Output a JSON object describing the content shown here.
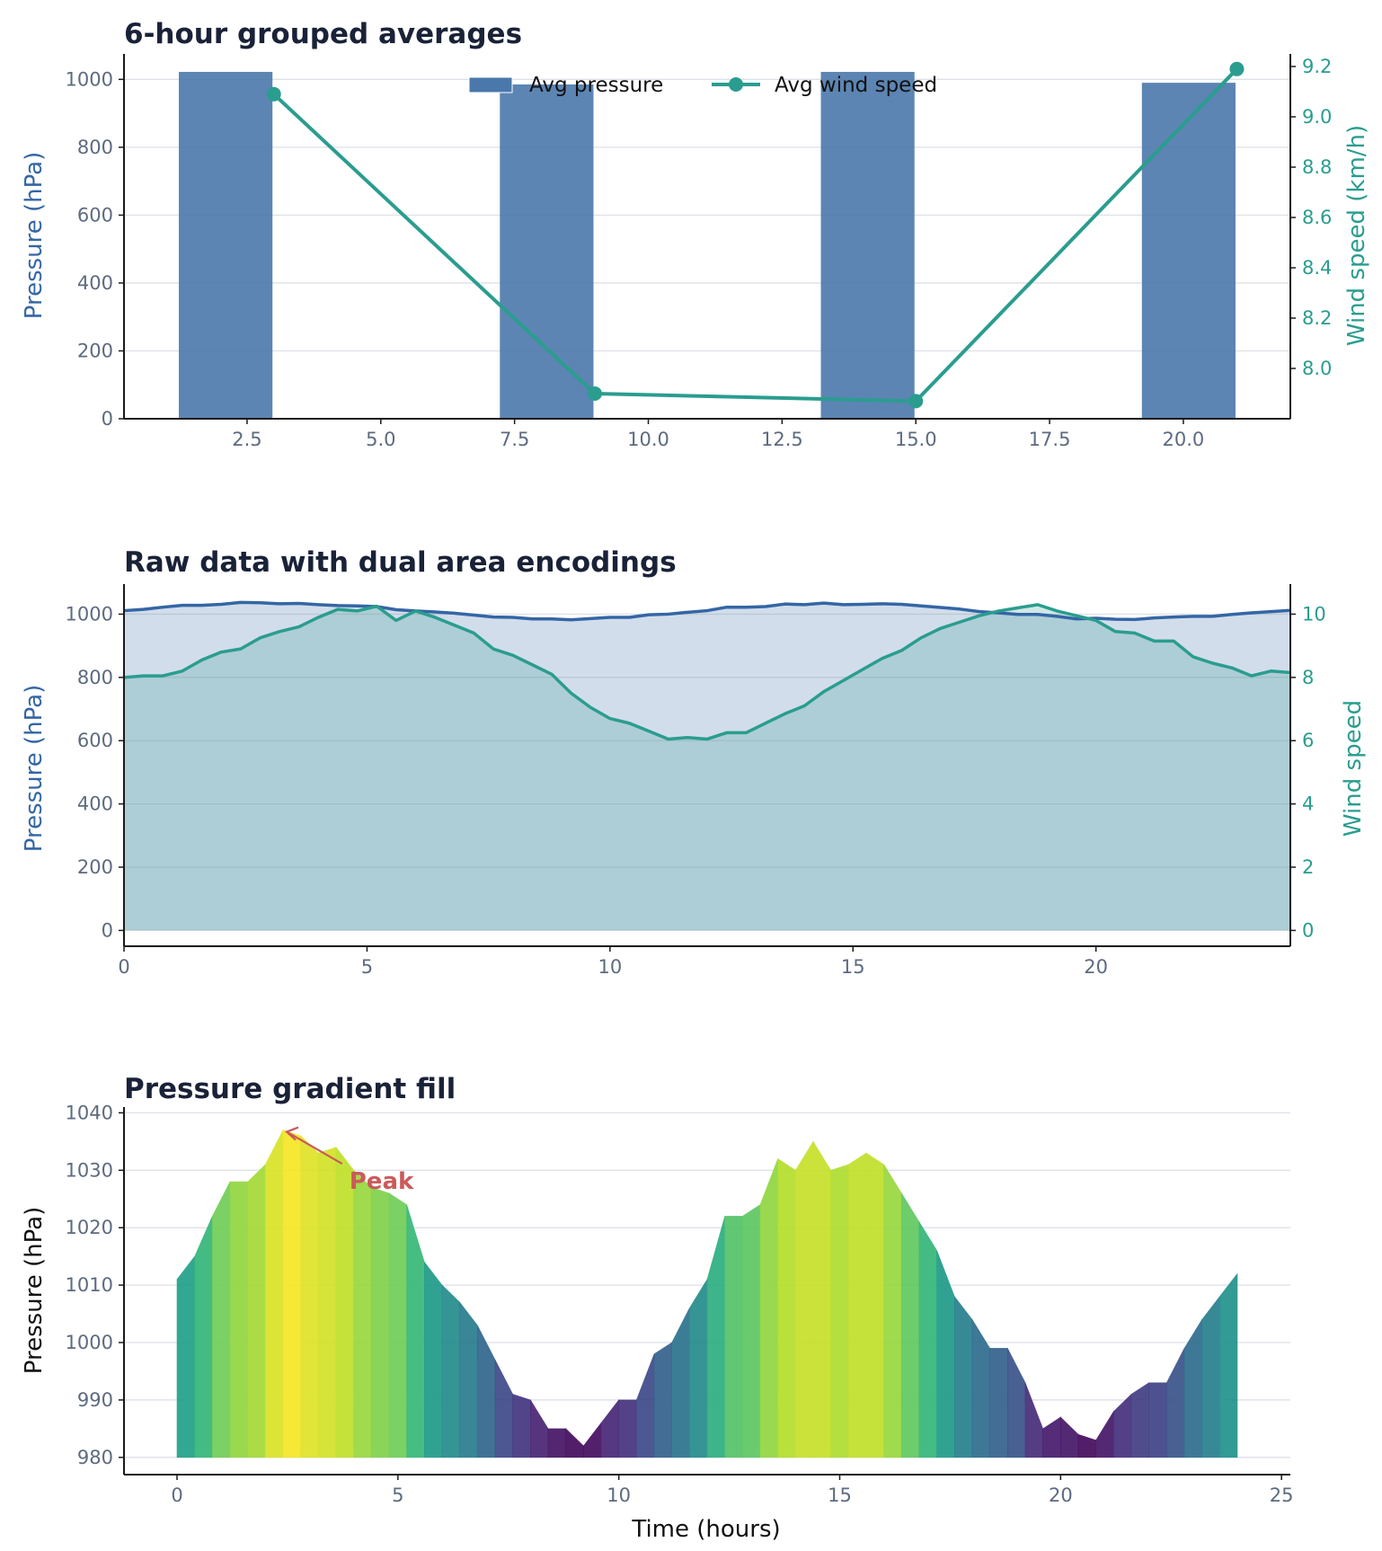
{
  "chart_data": [
    {
      "type": "bar",
      "title": "6-hour grouped averages",
      "ylabel": "Pressure (hPa)",
      "y2label": "Wind speed (km/h)",
      "ylim": [
        0,
        1075
      ],
      "y2lim": [
        7.8,
        9.25
      ],
      "xlim": [
        0.2,
        22
      ],
      "x_ticks": [
        2.5,
        5.0,
        7.5,
        10.0,
        12.5,
        15.0,
        17.5,
        20.0
      ],
      "y_ticks": [
        0,
        200,
        400,
        600,
        800,
        1000
      ],
      "y2_ticks": [
        8.0,
        8.2,
        8.4,
        8.6,
        8.8,
        9.0,
        9.2
      ],
      "grid": true,
      "legend_position": "top-center",
      "series": [
        {
          "name": "Avg pressure",
          "kind": "bar",
          "x": [
            2.1,
            8.1,
            14.1,
            20.1
          ],
          "width": 1.75,
          "values": [
            1022,
            985,
            1022,
            990
          ],
          "color": "#4a78ab"
        },
        {
          "name": "Avg wind speed",
          "kind": "line",
          "x": [
            3.0,
            9.0,
            15.0,
            21.0
          ],
          "values": [
            9.09,
            7.9,
            7.87,
            9.19
          ],
          "color": "#2a9d8f"
        }
      ]
    },
    {
      "type": "area",
      "title": "Raw data with dual area encodings",
      "ylabel": "Pressure (hPa)",
      "y2label": "Wind speed",
      "xlim": [
        0,
        24
      ],
      "ylim": [
        -50,
        1095
      ],
      "y2lim": [
        -0.5,
        10.95
      ],
      "x_ticks": [
        0,
        5,
        10,
        15,
        20
      ],
      "y_ticks": [
        0,
        200,
        400,
        600,
        800,
        1000
      ],
      "y2_ticks": [
        0,
        2,
        4,
        6,
        8,
        10
      ],
      "grid": true,
      "series": [
        {
          "name": "",
          "axis": "left",
          "color": "#3466a5",
          "x": [
            0,
            0.4,
            0.8,
            1.2,
            1.6,
            2.0,
            2.4,
            2.8,
            3.2,
            3.6,
            4.0,
            4.4,
            4.8,
            5.2,
            5.6,
            6.0,
            6.4,
            6.8,
            7.2,
            7.6,
            8.0,
            8.4,
            8.8,
            9.2,
            9.6,
            10.0,
            10.4,
            10.8,
            11.2,
            11.6,
            12.0,
            12.4,
            12.8,
            13.2,
            13.6,
            14.0,
            14.4,
            14.8,
            15.2,
            15.6,
            16.0,
            16.4,
            16.8,
            17.2,
            17.6,
            18.0,
            18.4,
            18.8,
            19.2,
            19.6,
            20.0,
            20.4,
            20.8,
            21.2,
            21.6,
            22.0,
            22.4,
            22.8,
            23.2,
            23.6,
            24.0
          ],
          "values": [
            1011,
            1015,
            1022,
            1028,
            1028,
            1031,
            1037,
            1036,
            1033,
            1034,
            1030,
            1027,
            1026,
            1024,
            1014,
            1010,
            1007,
            1003,
            997,
            991,
            990,
            985,
            985,
            982,
            986,
            990,
            990,
            998,
            1000,
            1006,
            1011,
            1022,
            1022,
            1024,
            1032,
            1030,
            1035,
            1030,
            1031,
            1033,
            1031,
            1026,
            1021,
            1016,
            1008,
            1004,
            999,
            999,
            993,
            985,
            987,
            984,
            983,
            988,
            991,
            993,
            993,
            999,
            1004,
            1008,
            1012
          ]
        },
        {
          "name": "",
          "axis": "right",
          "color": "#2a9d8f",
          "x": [
            0,
            0.4,
            0.8,
            1.2,
            1.6,
            2.0,
            2.4,
            2.8,
            3.2,
            3.6,
            4.0,
            4.4,
            4.8,
            5.2,
            5.6,
            6.0,
            6.4,
            6.8,
            7.2,
            7.6,
            8.0,
            8.4,
            8.8,
            9.2,
            9.6,
            10.0,
            10.4,
            10.8,
            11.2,
            11.6,
            12.0,
            12.4,
            12.8,
            13.2,
            13.6,
            14.0,
            14.4,
            14.8,
            15.2,
            15.6,
            16.0,
            16.4,
            16.8,
            17.2,
            17.6,
            18.0,
            18.4,
            18.8,
            19.2,
            19.6,
            20.0,
            20.4,
            20.8,
            21.2,
            21.6,
            22.0,
            22.4,
            22.8,
            23.2,
            23.6,
            24.0
          ],
          "values": [
            8.0,
            8.05,
            8.05,
            8.2,
            8.55,
            8.8,
            8.9,
            9.25,
            9.45,
            9.6,
            9.9,
            10.15,
            10.1,
            10.25,
            9.8,
            10.1,
            9.9,
            9.65,
            9.4,
            8.9,
            8.7,
            8.4,
            8.1,
            7.5,
            7.05,
            6.7,
            6.55,
            6.3,
            6.05,
            6.1,
            6.05,
            6.25,
            6.25,
            6.55,
            6.85,
            7.1,
            7.55,
            7.9,
            8.25,
            8.6,
            8.85,
            9.25,
            9.55,
            9.75,
            9.95,
            10.1,
            10.2,
            10.3,
            10.1,
            9.95,
            9.8,
            9.45,
            9.4,
            9.15,
            9.15,
            8.65,
            8.45,
            8.3,
            8.05,
            8.2,
            8.15
          ]
        }
      ]
    },
    {
      "type": "area",
      "title": "Pressure gradient fill",
      "xlabel": "Time (hours)",
      "ylabel": "Pressure (hPa)",
      "xlim": [
        -1.2,
        25.2
      ],
      "ylim": [
        977,
        1041
      ],
      "x_ticks": [
        0,
        5,
        10,
        15,
        20,
        25
      ],
      "y_ticks": [
        980,
        990,
        1000,
        1010,
        1020,
        1030,
        1040
      ],
      "grid": true,
      "fill_baseline": 980,
      "colormap": "viridis",
      "annotation": {
        "text": "Peak",
        "x": 2.4,
        "y": 1037,
        "text_x": 3.9,
        "text_y": 1028,
        "color": "#cc5a5a"
      },
      "series": [
        {
          "name": "",
          "x": [
            0,
            0.4,
            0.8,
            1.2,
            1.6,
            2.0,
            2.4,
            2.8,
            3.2,
            3.6,
            4.0,
            4.4,
            4.8,
            5.2,
            5.6,
            6.0,
            6.4,
            6.8,
            7.2,
            7.6,
            8.0,
            8.4,
            8.8,
            9.2,
            9.6,
            10.0,
            10.4,
            10.8,
            11.2,
            11.6,
            12.0,
            12.4,
            12.8,
            13.2,
            13.6,
            14.0,
            14.4,
            14.8,
            15.2,
            15.6,
            16.0,
            16.4,
            16.8,
            17.2,
            17.6,
            18.0,
            18.4,
            18.8,
            19.2,
            19.6,
            20.0,
            20.4,
            20.8,
            21.2,
            21.6,
            22.0,
            22.4,
            22.8,
            23.2,
            23.6,
            24.0
          ],
          "values": [
            1011,
            1015,
            1022,
            1028,
            1028,
            1031,
            1037,
            1036,
            1033,
            1034,
            1030,
            1027,
            1026,
            1024,
            1014,
            1010,
            1007,
            1003,
            997,
            991,
            990,
            985,
            985,
            982,
            986,
            990,
            990,
            998,
            1000,
            1006,
            1011,
            1022,
            1022,
            1024,
            1032,
            1030,
            1035,
            1030,
            1031,
            1033,
            1031,
            1026,
            1021,
            1016,
            1008,
            1004,
            999,
            999,
            993,
            985,
            987,
            984,
            983,
            988,
            991,
            993,
            993,
            999,
            1004,
            1008,
            1012
          ]
        }
      ]
    }
  ]
}
